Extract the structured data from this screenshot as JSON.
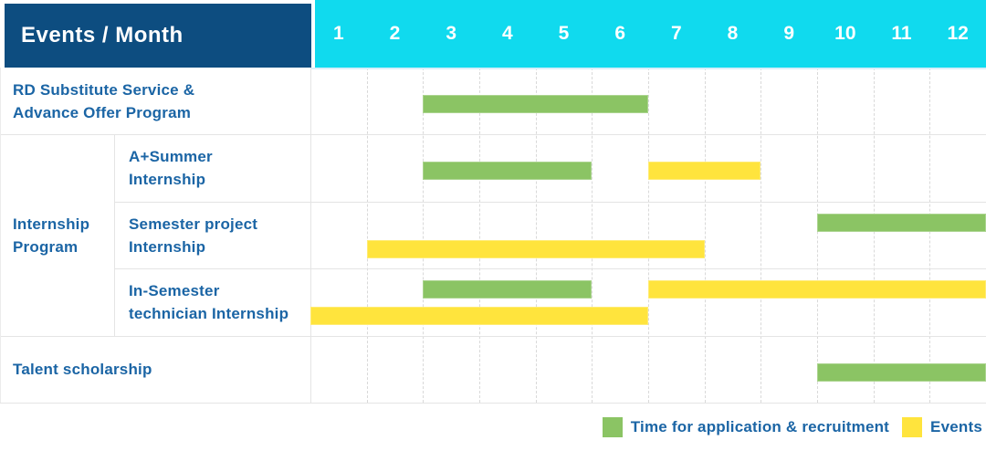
{
  "header": {
    "title": "Events / Month",
    "months": [
      "1",
      "2",
      "3",
      "4",
      "5",
      "6",
      "7",
      "8",
      "9",
      "10",
      "11",
      "12"
    ]
  },
  "colors": {
    "header_bg": "#0d4d80",
    "month_bg": "#10daee",
    "application": "#8bc464",
    "event": "#ffe43d",
    "label_text": "#1b65a5",
    "row_border": "#e4e4e4",
    "header_underline": "#d8effa"
  },
  "chart_data": {
    "type": "gantt",
    "title": "Events / Month",
    "x_unit": "month",
    "x_range": [
      1,
      12
    ],
    "group": {
      "label": "Internship Program",
      "lines": [
        "Internship",
        "Program"
      ],
      "from_row": 1,
      "to_row": 3
    },
    "rows": [
      {
        "label": "RD Substitute Service & Advance Offer Program",
        "lines": [
          "RD Substitute Service &",
          "Advance Offer Program"
        ],
        "indent": false,
        "bars": [
          {
            "series": "application",
            "start_month": 3,
            "end_month": 6,
            "lane": "single"
          }
        ]
      },
      {
        "label": "A+Summer Internship",
        "lines": [
          "A+Summer",
          "Internship"
        ],
        "indent": true,
        "bars": [
          {
            "series": "application",
            "start_month": 3,
            "end_month": 5,
            "lane": "single"
          },
          {
            "series": "event",
            "start_month": 7,
            "end_month": 8,
            "lane": "single"
          }
        ]
      },
      {
        "label": "Semester project Internship",
        "lines": [
          "Semester project",
          "Internship"
        ],
        "indent": true,
        "bars": [
          {
            "series": "application",
            "start_month": 10,
            "end_month": 12,
            "lane": "top"
          },
          {
            "series": "event",
            "start_month": 2,
            "end_month": 7,
            "lane": "bottom"
          }
        ]
      },
      {
        "label": "In-Semester technician Internship",
        "lines": [
          "In-Semester",
          "technician Internship"
        ],
        "indent": true,
        "bars": [
          {
            "series": "application",
            "start_month": 3,
            "end_month": 5,
            "lane": "top"
          },
          {
            "series": "event",
            "start_month": 7,
            "end_month": 12,
            "lane": "top"
          },
          {
            "series": "event",
            "start_month": 1,
            "end_month": 6,
            "lane": "bottom"
          }
        ]
      },
      {
        "label": "Talent scholarship",
        "lines": [
          "Talent scholarship"
        ],
        "indent": false,
        "bars": [
          {
            "series": "application",
            "start_month": 10,
            "end_month": 12,
            "lane": "single"
          }
        ]
      }
    ],
    "legend": [
      {
        "label": "Time for application & recruitment",
        "series": "application"
      },
      {
        "label": "Events",
        "series": "event"
      }
    ]
  }
}
